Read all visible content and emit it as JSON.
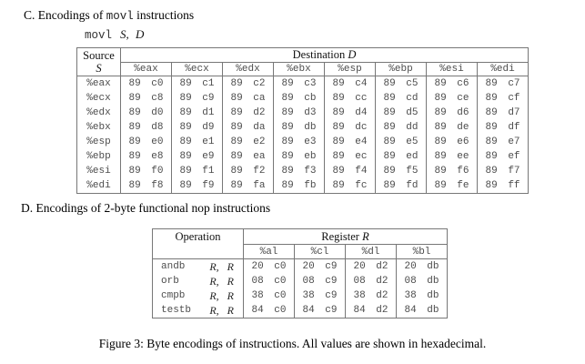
{
  "page": {
    "heading_c": {
      "prefix": "C. Encodings of ",
      "code": "movl",
      "suffix": " instructions"
    },
    "movl_line": {
      "code": "movl",
      "operands": "S, D"
    },
    "heading_d": "D. Encodings of 2-byte functional nop instructions",
    "caption": "Figure 3: Byte encodings of instructions. All values are shown in hexadecimal."
  },
  "table1": {
    "source_header": "Source",
    "source_var": "S",
    "dest_header_text": "Destination ",
    "dest_header_var": "D",
    "dest_regs": [
      "%eax",
      "%ecx",
      "%edx",
      "%ebx",
      "%esp",
      "%ebp",
      "%esi",
      "%edi"
    ],
    "rows": [
      {
        "src": "%eax",
        "cells": [
          "89 c0",
          "89 c1",
          "89 c2",
          "89 c3",
          "89 c4",
          "89 c5",
          "89 c6",
          "89 c7"
        ]
      },
      {
        "src": "%ecx",
        "cells": [
          "89 c8",
          "89 c9",
          "89 ca",
          "89 cb",
          "89 cc",
          "89 cd",
          "89 ce",
          "89 cf"
        ]
      },
      {
        "src": "%edx",
        "cells": [
          "89 d0",
          "89 d1",
          "89 d2",
          "89 d3",
          "89 d4",
          "89 d5",
          "89 d6",
          "89 d7"
        ]
      },
      {
        "src": "%ebx",
        "cells": [
          "89 d8",
          "89 d9",
          "89 da",
          "89 db",
          "89 dc",
          "89 dd",
          "89 de",
          "89 df"
        ]
      },
      {
        "src": "%esp",
        "cells": [
          "89 e0",
          "89 e1",
          "89 e2",
          "89 e3",
          "89 e4",
          "89 e5",
          "89 e6",
          "89 e7"
        ]
      },
      {
        "src": "%ebp",
        "cells": [
          "89 e8",
          "89 e9",
          "89 ea",
          "89 eb",
          "89 ec",
          "89 ed",
          "89 ee",
          "89 ef"
        ]
      },
      {
        "src": "%esi",
        "cells": [
          "89 f0",
          "89 f1",
          "89 f2",
          "89 f3",
          "89 f4",
          "89 f5",
          "89 f6",
          "89 f7"
        ]
      },
      {
        "src": "%edi",
        "cells": [
          "89 f8",
          "89 f9",
          "89 fa",
          "89 fb",
          "89 fc",
          "89 fd",
          "89 fe",
          "89 ff"
        ]
      }
    ]
  },
  "table2": {
    "operation_header": "Operation",
    "register_header_text": "Register ",
    "register_header_var": "R",
    "registers": [
      "%al",
      "%cl",
      "%dl",
      "%bl"
    ],
    "rows": [
      {
        "name": "andb",
        "args": "R, R",
        "cells": [
          "20 c0",
          "20 c9",
          "20 d2",
          "20 db"
        ]
      },
      {
        "name": "orb",
        "args": "R, R",
        "cells": [
          "08 c0",
          "08 c9",
          "08 d2",
          "08 db"
        ]
      },
      {
        "name": "cmpb",
        "args": "R, R",
        "cells": [
          "38 c0",
          "38 c9",
          "38 d2",
          "38 db"
        ]
      },
      {
        "name": "testb",
        "args": "R, R",
        "cells": [
          "84 c0",
          "84 c9",
          "84 d2",
          "84 db"
        ]
      }
    ]
  }
}
